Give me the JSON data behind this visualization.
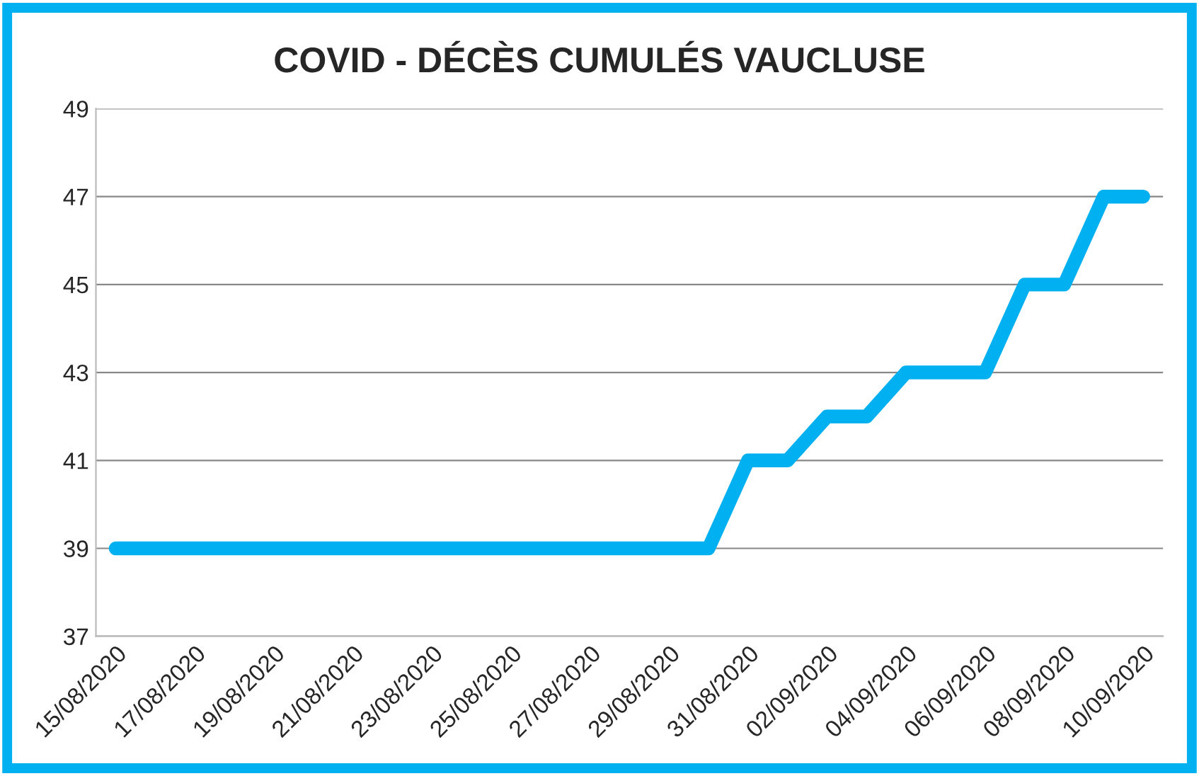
{
  "chart_data": {
    "type": "line",
    "title": "COVID - DÉCÈS CUMULÉS VAUCLUSE",
    "categories": [
      "15/08/2020",
      null,
      "17/08/2020",
      null,
      "19/08/2020",
      null,
      "21/08/2020",
      null,
      "23/08/2020",
      null,
      "25/08/2020",
      null,
      "27/08/2020",
      null,
      "29/08/2020",
      null,
      "31/08/2020",
      null,
      "02/09/2020",
      null,
      "04/09/2020",
      null,
      "06/09/2020",
      null,
      "08/09/2020",
      null,
      "10/09/2020"
    ],
    "series": [
      {
        "color": "#00b0f0",
        "values": [
          39,
          39,
          39,
          39,
          39,
          39,
          39,
          39,
          39,
          39,
          39,
          39,
          39,
          39,
          39,
          39,
          41,
          41,
          42,
          42,
          43,
          43,
          43,
          45,
          45,
          47,
          47
        ]
      }
    ],
    "ylim": [
      37,
      49
    ],
    "yticks": [
      37,
      39,
      41,
      43,
      45,
      47,
      49
    ],
    "grid": "y",
    "marker": "none",
    "line_style": "solid"
  }
}
